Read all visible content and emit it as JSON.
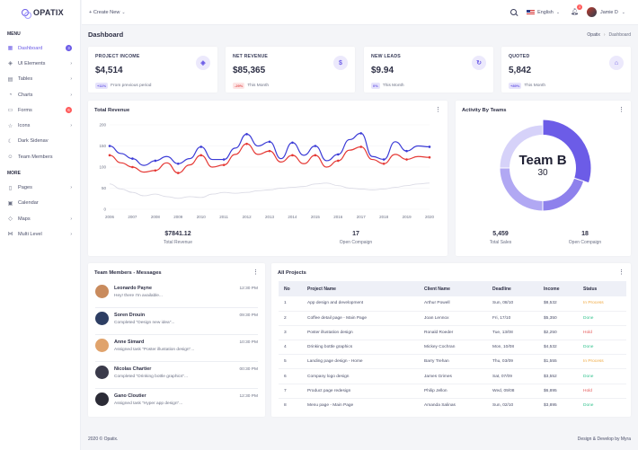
{
  "app": {
    "name": "OPATIX"
  },
  "sidebar": {
    "menu_title": "MENU",
    "more_title": "MORE",
    "items": [
      {
        "label": "Dashboard",
        "icon": "grid-icon",
        "badge": "3",
        "active": true
      },
      {
        "label": "UI Elements",
        "icon": "layers-icon",
        "chevron": true
      },
      {
        "label": "Tables",
        "icon": "table-icon",
        "chevron": true
      },
      {
        "label": "Charts",
        "icon": "pie-chart-icon",
        "chevron": true
      },
      {
        "label": "Forms",
        "icon": "form-icon",
        "badge": "6"
      },
      {
        "label": "Icons",
        "icon": "star-icon",
        "chevron": true
      },
      {
        "label": "Dark Sidenav",
        "icon": "moon-icon"
      },
      {
        "label": "Team Members",
        "icon": "users-icon"
      }
    ],
    "more_items": [
      {
        "label": "Pages",
        "icon": "file-icon",
        "chevron": true
      },
      {
        "label": "Calendar",
        "icon": "calendar-icon"
      },
      {
        "label": "Maps",
        "icon": "map-icon",
        "chevron": true
      },
      {
        "label": "Multi Level",
        "icon": "share-icon",
        "chevron": true
      }
    ]
  },
  "header": {
    "create_new": "+ Create New",
    "language": "English",
    "notification_count": "3",
    "user_name": "Jamie D"
  },
  "page": {
    "title": "Dashboard",
    "breadcrumb": [
      "Opatix",
      "Dashboard"
    ]
  },
  "stats": [
    {
      "label": "PROJECT INCOME",
      "value": "$4,514",
      "change": "+11%",
      "note": "From previous period",
      "tone": "purple",
      "icon": "layers-icon"
    },
    {
      "label": "NET REVENUE",
      "value": "$85,365",
      "change": "-29%",
      "note": "This Month",
      "tone": "red",
      "icon": "dollar-icon"
    },
    {
      "label": "NEW LEADS",
      "value": "$9.94",
      "change": "0%",
      "note": "This Month",
      "tone": "purple",
      "icon": "refresh-icon"
    },
    {
      "label": "QUOTED",
      "value": "5,842",
      "change": "+89%",
      "note": "This Month",
      "tone": "purple",
      "icon": "basket-icon"
    }
  ],
  "revenue": {
    "title": "Total Revenue",
    "summary": [
      {
        "value": "$7841.12",
        "label": "Total Revenue"
      },
      {
        "value": "17",
        "label": "Open Compaign"
      }
    ]
  },
  "activity": {
    "title": "Activity By Teams",
    "center_label": "Team B",
    "center_value": "30",
    "summary": [
      {
        "value": "5,459",
        "label": "Total Sales"
      },
      {
        "value": "18",
        "label": "Open Compaign"
      }
    ]
  },
  "messages": {
    "title": "Team Members - Messages",
    "items": [
      {
        "name": "Leonardo Payne",
        "text": "Hey! there I'm available...",
        "time": "12:30 PM",
        "avatar_color": "#c98b5d"
      },
      {
        "name": "Soren Drouin",
        "text": "Completed \"Design new idea\"...",
        "time": "09:30 PM",
        "avatar_color": "#2d3e63"
      },
      {
        "name": "Anne Simard",
        "text": "Assigned task \"Poster illustation design\"...",
        "time": "10:30 PM",
        "avatar_color": "#e0a36c"
      },
      {
        "name": "Nicolas Chartier",
        "text": "Completed \"Drinking bottle graphics\"...",
        "time": "00:30 PM",
        "avatar_color": "#3a3a4a"
      },
      {
        "name": "Gano Cloutier",
        "text": "Assigned task \"Hyper app design\"...",
        "time": "12:30 PM",
        "avatar_color": "#2b2b36"
      }
    ]
  },
  "projects": {
    "title": "All Projects",
    "columns": [
      "No",
      "Project Name",
      "Client Name",
      "Deadline",
      "Income",
      "Status"
    ],
    "rows": [
      [
        "1",
        "App design and development",
        "Arthur Powell",
        "Sun, 08/10",
        "$8,532",
        "In Process"
      ],
      [
        "2",
        "Coffee detail page - Main Page",
        "Joan Lennox",
        "Fri, 17/10",
        "$5,350",
        "Done"
      ],
      [
        "3",
        "Poster illustation design",
        "Ronald Roeder",
        "Tue, 13/08",
        "$2,250",
        "Hold"
      ],
      [
        "4",
        "Drinking bottle graphics",
        "Mickey Cochran",
        "Mon, 10/08",
        "$4,532",
        "Done"
      ],
      [
        "5",
        "Landing page design - Home",
        "Barry Trehan",
        "Thu, 03/09",
        "$1,555",
        "In Process"
      ],
      [
        "6",
        "Company logo design",
        "James Grimes",
        "Sat, 07/09",
        "$3,552",
        "Done"
      ],
      [
        "7",
        "Product page redesign",
        "Philip Jellon",
        "Wed, 09/08",
        "$6,895",
        "Hold"
      ],
      [
        "8",
        "Menu page - Main Page",
        "Amanda Salinas",
        "Sun, 02/10",
        "$3,895",
        "Done"
      ]
    ],
    "status_colors": {
      "In Process": "#f0a941",
      "Done": "#34c38f",
      "Hold": "#e55757"
    }
  },
  "footer": {
    "left": "2020 © Opatix.",
    "right": "Design & Develop by Myra"
  },
  "chart_data": [
    {
      "type": "line",
      "title": "Total Revenue",
      "x": [
        "2006",
        "",
        "2007",
        "",
        "2008",
        "",
        "2009",
        "",
        "2010",
        "",
        "2011",
        "",
        "2012",
        "",
        "2013",
        "",
        "2014",
        "",
        "2015",
        "",
        "2016",
        "",
        "2017",
        "",
        "2018",
        "",
        "2019",
        "",
        "2020"
      ],
      "xticks": [
        "2006",
        "2007",
        "2008",
        "2009",
        "2010",
        "2011",
        "2012",
        "2013",
        "2014",
        "2015",
        "2016",
        "2017",
        "2018",
        "2019",
        "2020"
      ],
      "ylim": [
        0,
        200
      ],
      "yticks": [
        0,
        50,
        100,
        150,
        200
      ],
      "series": [
        {
          "color": "#3b3bd6",
          "values": [
            150,
            132,
            120,
            104,
            115,
            125,
            108,
            120,
            148,
            118,
            118,
            145,
            178,
            150,
            160,
            120,
            158,
            128,
            150,
            115,
            130,
            165,
            180,
            125,
            118,
            160,
            138,
            150,
            148
          ]
        },
        {
          "color": "#e53935",
          "values": [
            128,
            110,
            100,
            88,
            92,
            110,
            86,
            105,
            128,
            100,
            105,
            130,
            155,
            130,
            138,
            112,
            128,
            108,
            128,
            100,
            115,
            140,
            148,
            118,
            108,
            130,
            118,
            125,
            123
          ]
        },
        {
          "color": "#dcdce6",
          "values": [
            60,
            48,
            40,
            32,
            36,
            30,
            26,
            30,
            28,
            36,
            40,
            38,
            40,
            44,
            46,
            50,
            52,
            54,
            60,
            62,
            56,
            50,
            48,
            46,
            48,
            52,
            56,
            60,
            62
          ]
        }
      ]
    },
    {
      "type": "pie",
      "title": "Activity By Teams",
      "slices": [
        {
          "label": "Team B",
          "value": 30,
          "color": "#6c5ce7"
        },
        {
          "value": 20,
          "color": "#8e81ec"
        },
        {
          "value": 25,
          "color": "#b1a8f3"
        },
        {
          "value": 25,
          "color": "#d6d2f9"
        }
      ]
    }
  ]
}
